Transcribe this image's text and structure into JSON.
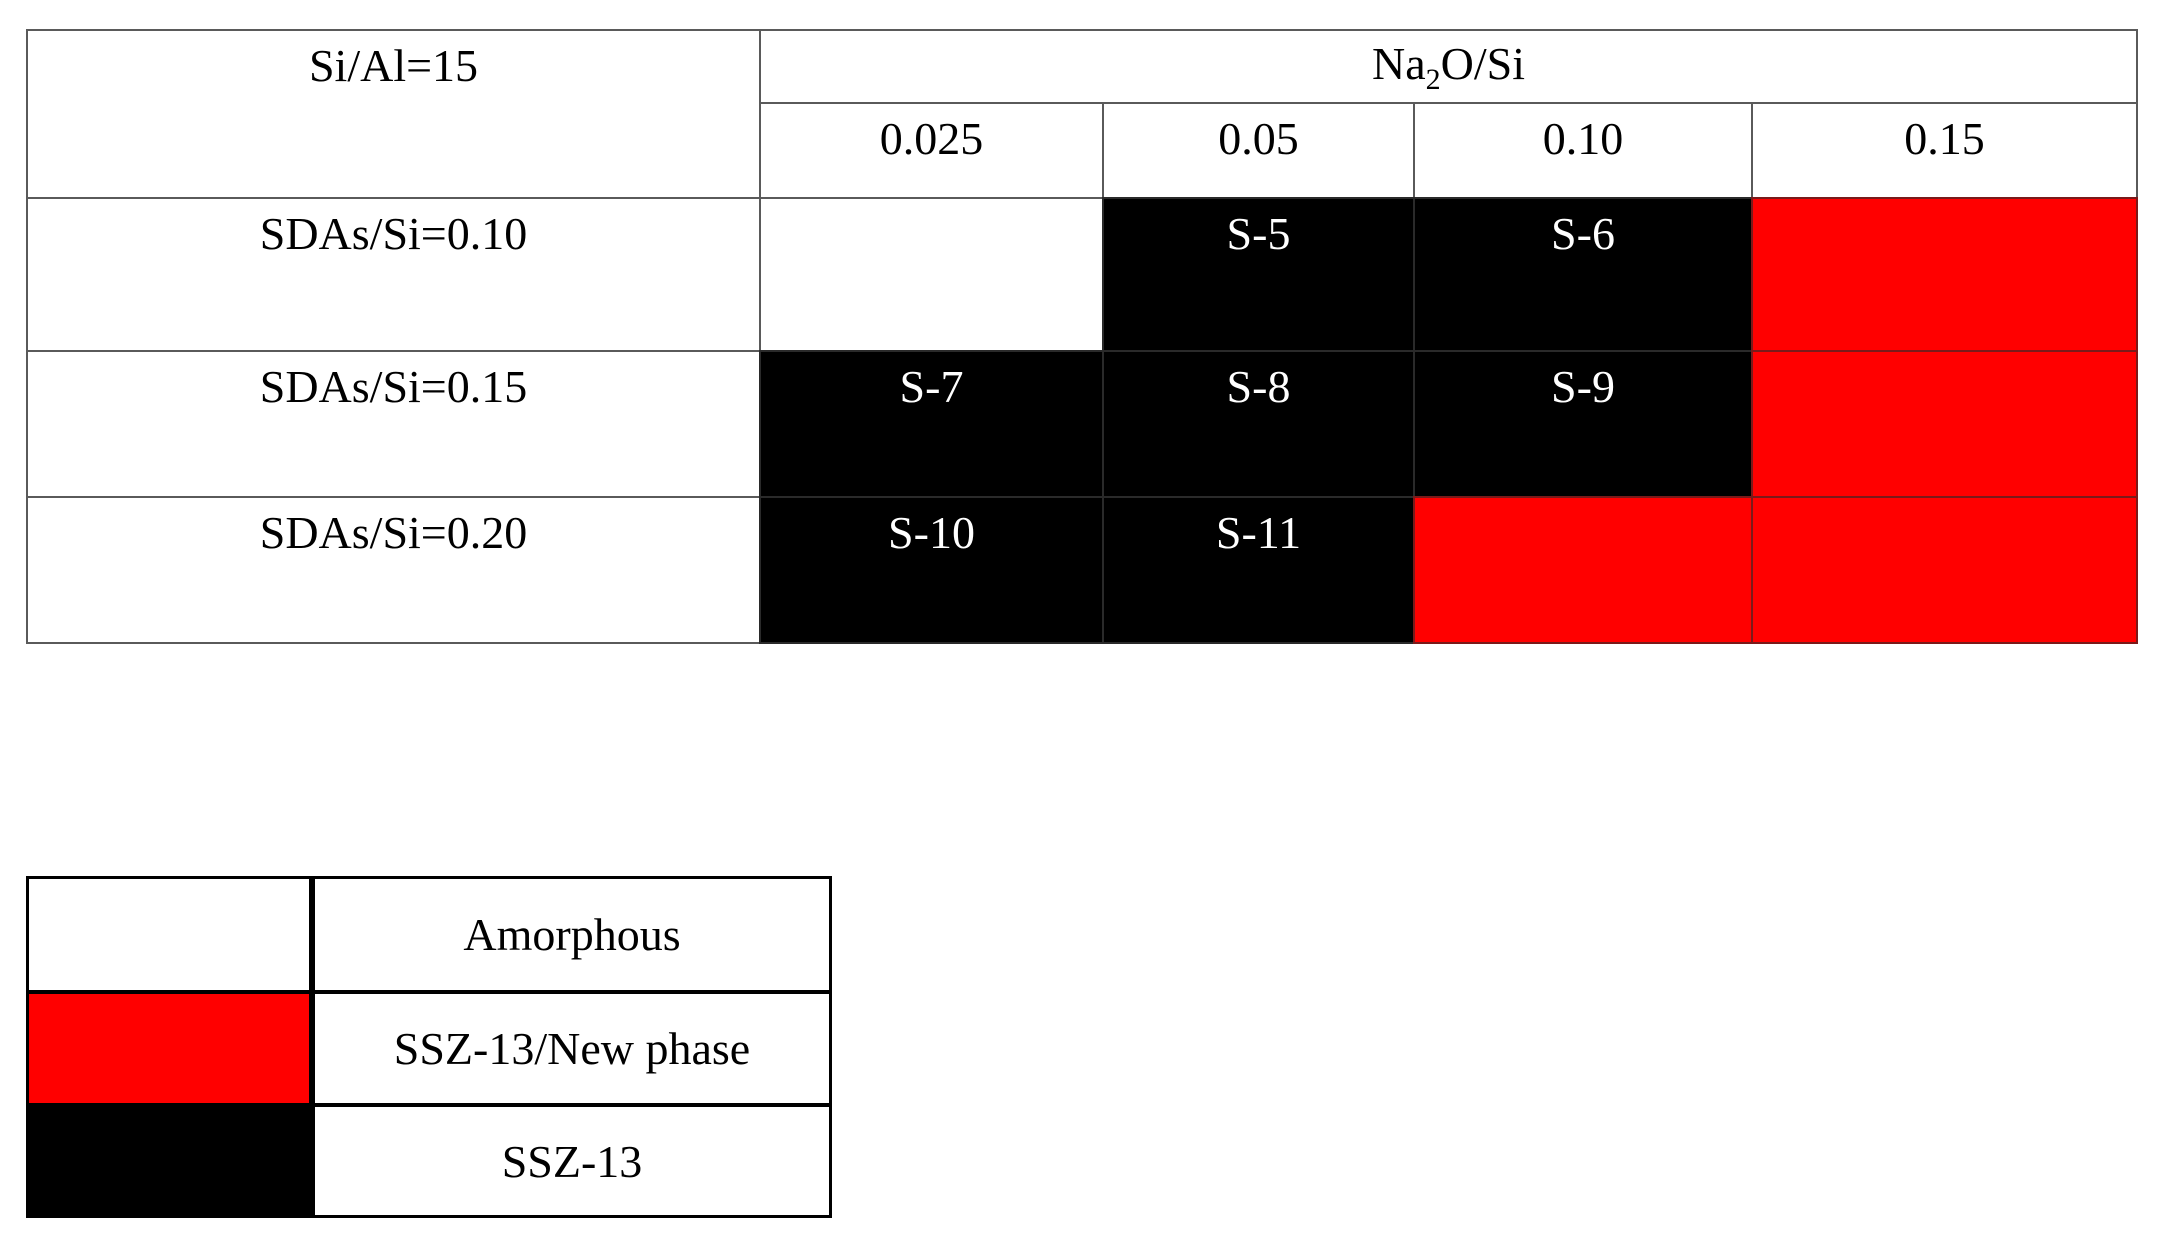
{
  "chart_data": {
    "type": "table",
    "corner_label": "Si/Al=15",
    "column_group_label": "Na2O/Si",
    "columns": [
      "0.025",
      "0.05",
      "0.10",
      "0.15"
    ],
    "rows": [
      {
        "label": "SDAs/Si=0.10",
        "cells": [
          {
            "sample": "",
            "phase": "Amorphous"
          },
          {
            "sample": "S-5",
            "phase": "SSZ-13"
          },
          {
            "sample": "S-6",
            "phase": "SSZ-13"
          },
          {
            "sample": "",
            "phase": "SSZ-13/New phase"
          }
        ]
      },
      {
        "label": "SDAs/Si=0.15",
        "cells": [
          {
            "sample": "S-7",
            "phase": "SSZ-13"
          },
          {
            "sample": "S-8",
            "phase": "SSZ-13"
          },
          {
            "sample": "S-9",
            "phase": "SSZ-13"
          },
          {
            "sample": "",
            "phase": "SSZ-13/New phase"
          }
        ]
      },
      {
        "label": "SDAs/Si=0.20",
        "cells": [
          {
            "sample": "S-10",
            "phase": "SSZ-13"
          },
          {
            "sample": "S-11",
            "phase": "SSZ-13"
          },
          {
            "sample": "",
            "phase": "SSZ-13/New phase"
          },
          {
            "sample": "",
            "phase": "SSZ-13/New phase"
          }
        ]
      }
    ],
    "legend": [
      {
        "label": "Amorphous",
        "color": "#ffffff"
      },
      {
        "label": "SSZ-13/New phase",
        "color": "#ff0000"
      },
      {
        "label": "SSZ-13",
        "color": "#000000"
      }
    ]
  }
}
